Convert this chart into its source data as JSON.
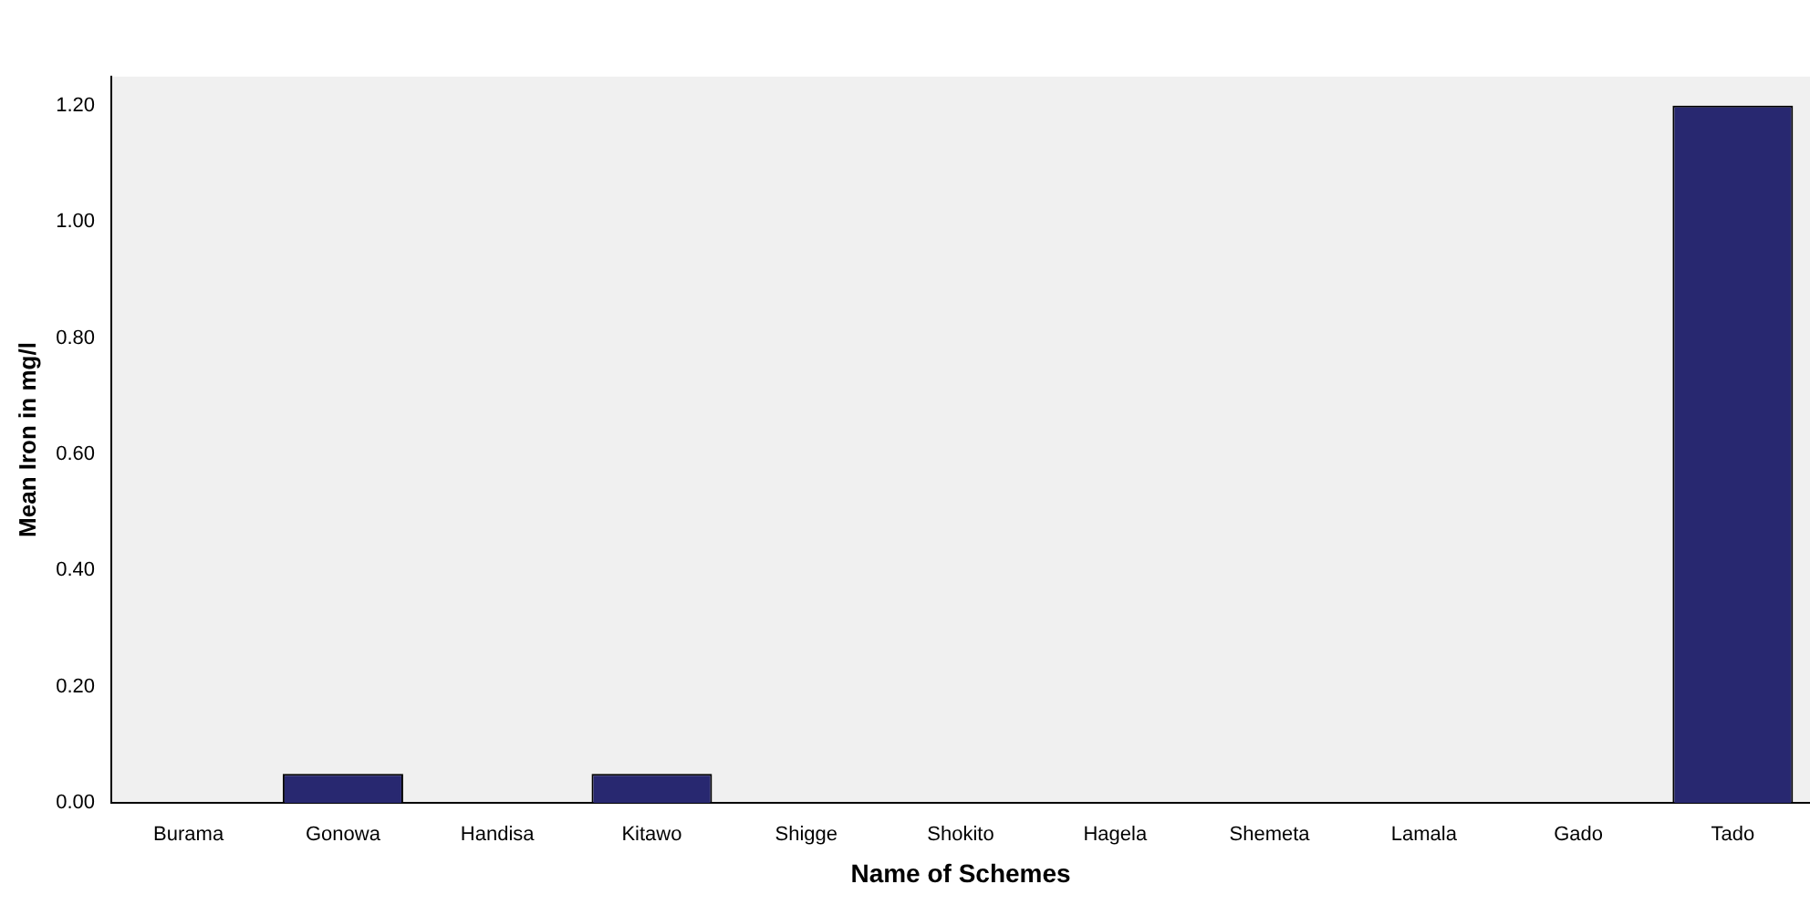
{
  "chart_data": {
    "type": "bar",
    "xlabel": "Name of Schemes",
    "ylabel": "Mean Iron in mg/l",
    "categories": [
      "Burama",
      "Gonowa",
      "Handisa",
      "Kitawo",
      "Shigge",
      "Shokito",
      "Hagela",
      "Shemeta",
      "Lamala",
      "Gado",
      "Tado"
    ],
    "values": [
      0,
      0.05,
      0,
      0.05,
      0,
      0,
      0,
      0,
      0,
      0,
      1.2
    ],
    "color": "#282870",
    "ylim": [
      0,
      1.25
    ],
    "yticks": [
      {
        "value": 0,
        "label": "0.00"
      },
      {
        "value": 0.2,
        "label": "0.20"
      },
      {
        "value": 0.4,
        "label": "0.40"
      },
      {
        "value": 0.6,
        "label": "0.60"
      },
      {
        "value": 0.8,
        "label": "0.80"
      },
      {
        "value": 1.0,
        "label": "1.00"
      },
      {
        "value": 1.2,
        "label": "1.20"
      }
    ],
    "grid": false,
    "legend": false
  }
}
